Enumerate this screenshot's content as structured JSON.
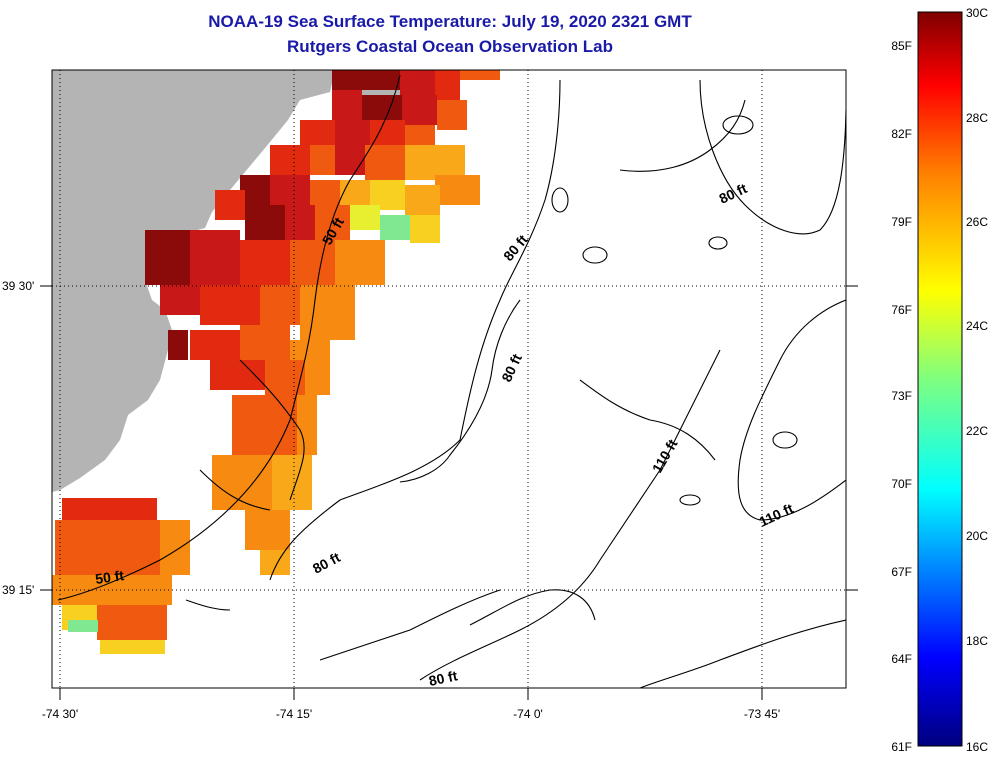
{
  "title": "NOAA-19 Sea Surface Temperature:  July 19, 2020 2321 GMT",
  "subtitle": "Rutgers Coastal Ocean Observation Lab",
  "colors": {
    "land": "#b4b4b4",
    "title": "#1a1aa8",
    "temp_scale": [
      "#00007f",
      "#0000ff",
      "#007fff",
      "#00ffff",
      "#7fff7f",
      "#ffff00",
      "#ff7f00",
      "#ff0000",
      "#7f0000"
    ]
  },
  "axes": {
    "longitude_ticks": [
      "-74 30'",
      "-74 15'",
      "-74 0'",
      "-73 45'"
    ],
    "latitude_ticks": [
      "39 30'",
      "39 15'"
    ]
  },
  "colorbar": {
    "celsius_labels": [
      "30C",
      "28C",
      "26C",
      "24C",
      "22C",
      "20C",
      "18C",
      "16C"
    ],
    "fahrenheit_labels": [
      "85F",
      "82F",
      "79F",
      "76F",
      "73F",
      "70F",
      "67F",
      "64F",
      "61F"
    ]
  },
  "contour_labels": [
    "50 ft",
    "50 ft",
    "80 ft",
    "80 ft",
    "80 ft",
    "80 ft",
    "80 ft",
    "110 ft",
    "110 ft"
  ]
}
